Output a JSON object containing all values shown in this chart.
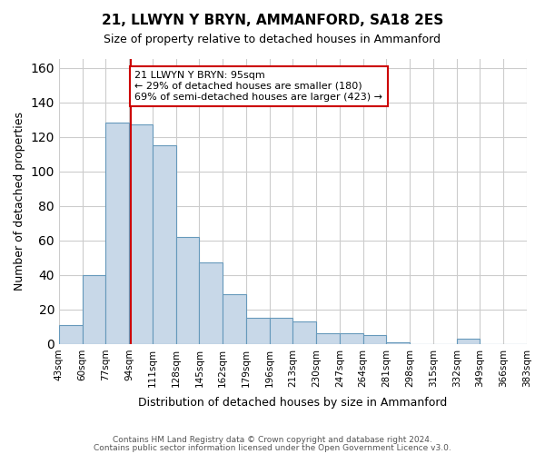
{
  "title": "21, LLWYN Y BRYN, AMMANFORD, SA18 2ES",
  "subtitle": "Size of property relative to detached houses in Ammanford",
  "xlabel": "Distribution of detached houses by size in Ammanford",
  "ylabel": "Number of detached properties",
  "bar_edges": [
    43,
    60,
    77,
    94,
    111,
    128,
    145,
    162,
    179,
    196,
    213,
    230,
    247,
    264,
    281,
    298,
    315,
    332,
    349,
    366,
    383
  ],
  "bar_heights": [
    11,
    40,
    128,
    127,
    115,
    62,
    47,
    29,
    15,
    15,
    13,
    6,
    6,
    5,
    1,
    0,
    0,
    3,
    0,
    0
  ],
  "bar_color": "#c8d8e8",
  "bar_edge_color": "#6699bb",
  "property_line_x": 95,
  "property_line_color": "#cc0000",
  "ylim": [
    0,
    165
  ],
  "yticks": [
    0,
    20,
    40,
    60,
    80,
    100,
    120,
    140,
    160
  ],
  "tick_labels": [
    "43sqm",
    "60sqm",
    "77sqm",
    "94sqm",
    "111sqm",
    "128sqm",
    "145sqm",
    "162sqm",
    "179sqm",
    "196sqm",
    "213sqm",
    "230sqm",
    "247sqm",
    "264sqm",
    "281sqm",
    "298sqm",
    "315sqm",
    "332sqm",
    "349sqm",
    "366sqm",
    "383sqm"
  ],
  "annotation_title": "21 LLWYN Y BRYN: 95sqm",
  "annotation_line1": "← 29% of detached houses are smaller (180)",
  "annotation_line2": "69% of semi-detached houses are larger (423) →",
  "annotation_box_color": "#ffffff",
  "annotation_box_edge_color": "#cc0000",
  "footnote1": "Contains HM Land Registry data © Crown copyright and database right 2024.",
  "footnote2": "Contains public sector information licensed under the Open Government Licence v3.0.",
  "background_color": "#ffffff",
  "grid_color": "#cccccc"
}
